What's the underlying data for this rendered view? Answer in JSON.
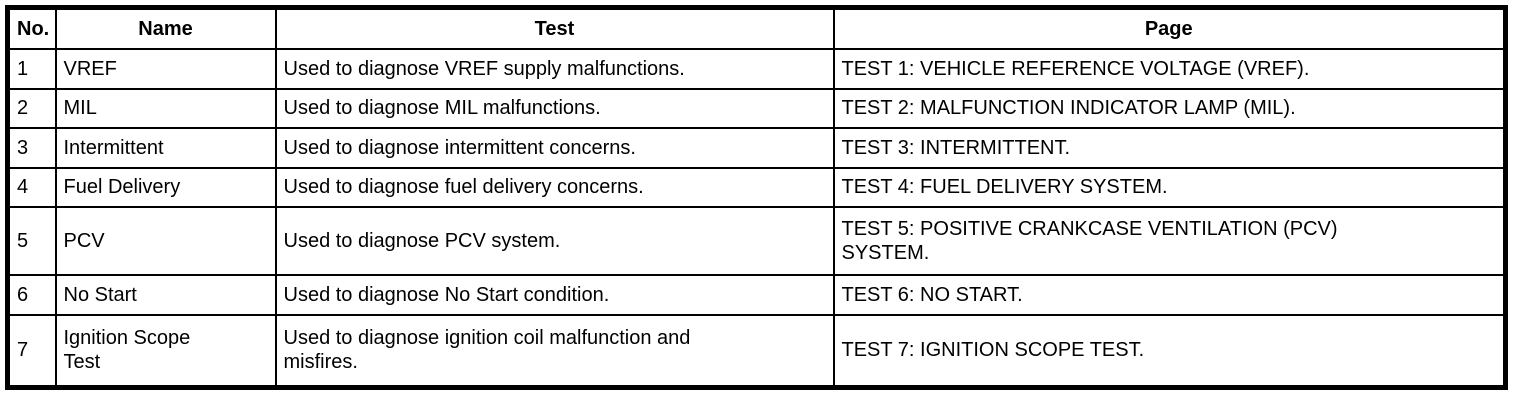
{
  "table": {
    "columns": [
      {
        "label": "No."
      },
      {
        "label": "Name"
      },
      {
        "label": "Test"
      },
      {
        "label": "Page"
      }
    ],
    "rows": [
      {
        "no": "1",
        "name": "VREF",
        "test": "Used to diagnose VREF supply malfunctions.",
        "page": "TEST 1: VEHICLE REFERENCE VOLTAGE (VREF)."
      },
      {
        "no": "2",
        "name": "MIL",
        "test": "Used to diagnose MIL malfunctions.",
        "page": "TEST 2: MALFUNCTION INDICATOR LAMP (MIL)."
      },
      {
        "no": "3",
        "name": "Intermittent",
        "test": "Used to diagnose intermittent concerns.",
        "page": "TEST 3: INTERMITTENT."
      },
      {
        "no": "4",
        "name": "Fuel Delivery",
        "test": "Used to diagnose fuel delivery concerns.",
        "page": "TEST 4: FUEL DELIVERY SYSTEM."
      },
      {
        "no": "5",
        "name": "PCV",
        "test": "Used to diagnose PCV system.",
        "page": "TEST 5: POSITIVE CRANKCASE VENTILATION (PCV)\nSYSTEM."
      },
      {
        "no": "6",
        "name": "No Start",
        "test": "Used to diagnose No Start condition.",
        "page": "TEST 6: NO START."
      },
      {
        "no": "7",
        "name": "Ignition Scope\nTest",
        "test": "Used to diagnose ignition coil malfunction and\nmisfires.",
        "page": "TEST 7: IGNITION SCOPE TEST."
      }
    ]
  },
  "colors": {
    "border": "#000000",
    "text": "#000000",
    "background": "#ffffff"
  }
}
